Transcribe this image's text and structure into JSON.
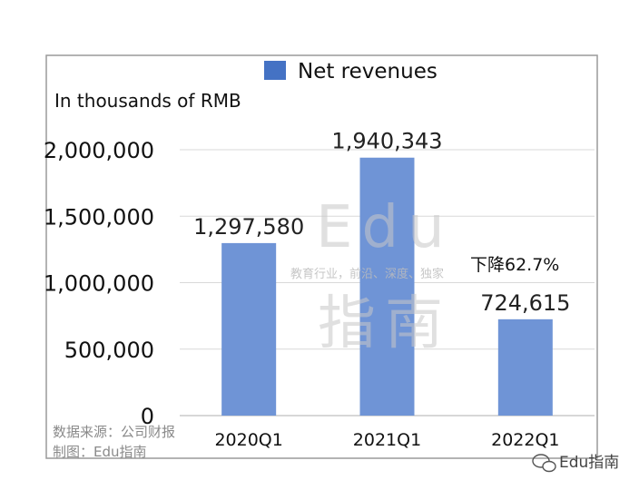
{
  "chart_data": {
    "type": "bar",
    "categories": [
      "2020Q1",
      "2021Q1",
      "2022Q1"
    ],
    "series": [
      {
        "name": "Net revenues",
        "values": [
          1297580,
          1940343,
          724615
        ]
      }
    ],
    "data_labels": [
      "1,297,580",
      "1,940,343",
      "724,615"
    ],
    "ylabel": "In thousands of RMB",
    "yticks": [
      "0",
      "500,000",
      "1,000,000",
      "1,500,000",
      "2,000,000"
    ],
    "ylim": [
      0,
      2000000
    ],
    "grid": true,
    "legend_position": "top",
    "bar_color": "#6f94d6",
    "legend_color": "#4472c4",
    "annotation": "下降62.7%"
  },
  "watermark": {
    "big_text": "Edu指南",
    "small_text": "教育行业，前沿、深度、独家"
  },
  "source": {
    "line1": "数据来源：公司财报",
    "line2": "制图：Edu指南"
  },
  "brand": {
    "icon": "wechat-icon",
    "label": "Edu指南"
  }
}
